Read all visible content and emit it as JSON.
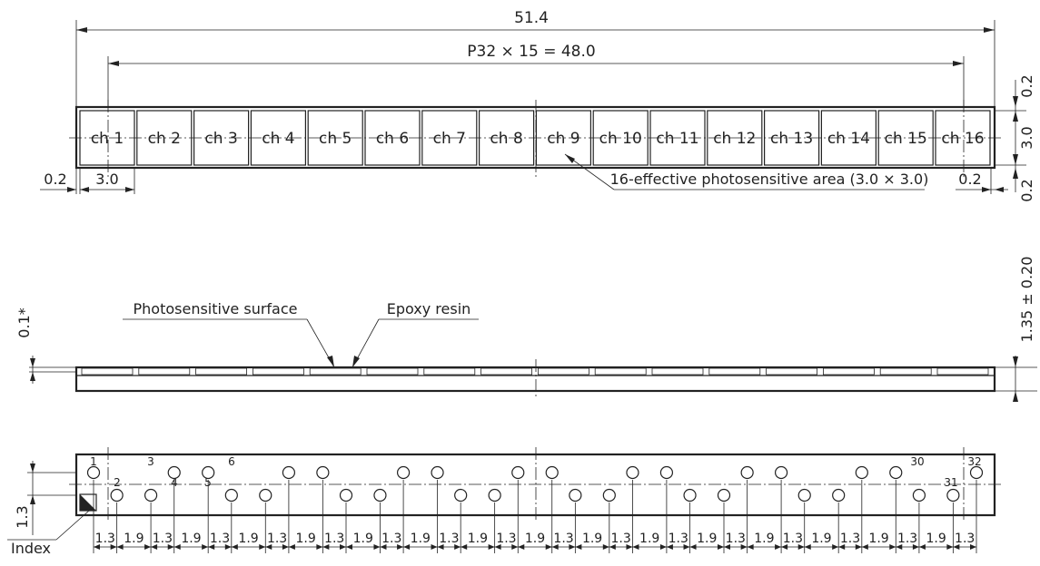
{
  "top_view": {
    "overall_width": "51.4",
    "pitch_label": "P32 × 15 = 48.0",
    "channels": [
      "ch 1",
      "ch 2",
      "ch 3",
      "ch 4",
      "ch 5",
      "ch 6",
      "ch 7",
      "ch 8",
      "ch 9",
      "ch 10",
      "ch 11",
      "ch 12",
      "ch 13",
      "ch 14",
      "ch 15",
      "ch 16"
    ],
    "margin_top": "0.2",
    "element_height": "3.0",
    "margin_bottom": "0.2",
    "margin_left": "0.2",
    "element_width": "3.0",
    "margin_right": "0.2",
    "area_note": "16-effective photosensitive area (3.0 × 3.0)"
  },
  "side_view": {
    "photosensitive_label": "Photosensitive surface",
    "epoxy_label": "Epoxy resin",
    "resin_thickness": "0.1*",
    "total_thickness": "1.35 ± 0.20"
  },
  "bottom_view": {
    "pin_labels": {
      "p1": "1",
      "p2": "2",
      "p3": "3",
      "p4": "4",
      "p5": "5",
      "p6": "6",
      "p30": "30",
      "p31": "31",
      "p32": "32"
    },
    "row_offset": "1.3",
    "index_label": "Index",
    "pitch_pattern": [
      "1.3",
      "1.9",
      "1.3",
      "1.9",
      "1.3",
      "1.9",
      "1.3",
      "1.9",
      "1.3",
      "1.9",
      "1.3",
      "1.9",
      "1.3",
      "1.9",
      "1.3",
      "1.9",
      "1.3",
      "1.9",
      "1.3",
      "1.9",
      "1.3",
      "1.9",
      "1.3",
      "1.9",
      "1.3",
      "1.9",
      "1.3",
      "1.9",
      "1.3",
      "1.9",
      "1.3"
    ]
  }
}
